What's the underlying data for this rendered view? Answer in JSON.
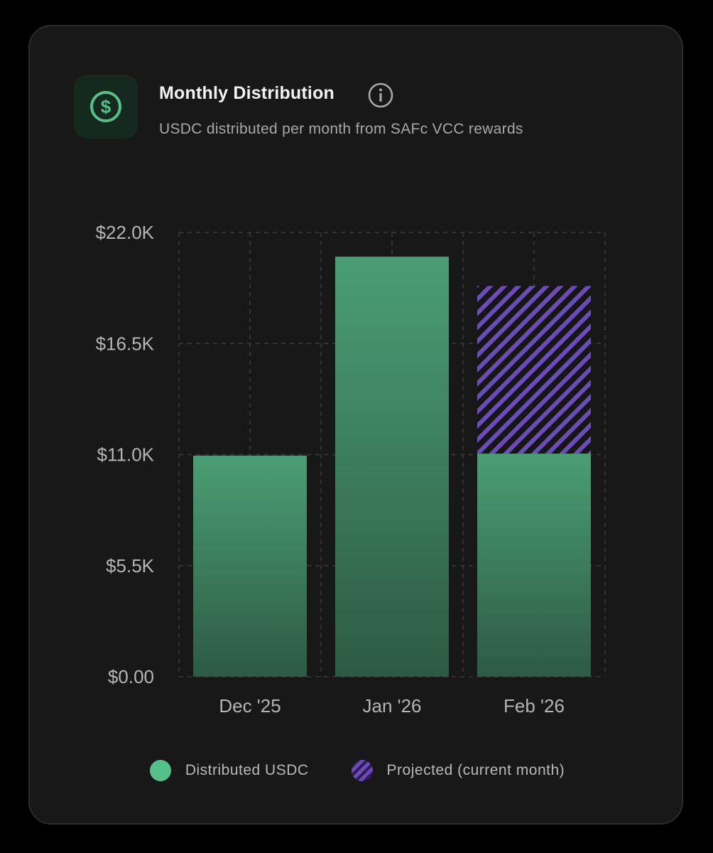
{
  "header": {
    "title": "Monthly Distribution",
    "subtitle": "USDC distributed per month from SAFc VCC rewards",
    "icon": "dollar-icon"
  },
  "colors": {
    "distributed": "#4a9b72",
    "distributed_dark": "#2e5a45",
    "projected": "#6a4bb8",
    "accent": "#55c08a"
  },
  "chart_data": {
    "type": "bar",
    "stacked": true,
    "title": "Monthly Distribution",
    "xlabel": "",
    "ylabel": "",
    "ylim": [
      0,
      22000
    ],
    "y_ticks": [
      0,
      5500,
      11000,
      16500,
      22000
    ],
    "y_tick_labels": [
      "$0.00",
      "$5.5K",
      "$11.0K",
      "$16.5K",
      "$22.0K"
    ],
    "categories": [
      "Dec '25",
      "Jan '26",
      "Feb '26"
    ],
    "series": [
      {
        "name": "Distributed USDC",
        "values": [
          10950,
          20800,
          11050
        ]
      },
      {
        "name": "Projected (current month)",
        "values": [
          0,
          0,
          8300
        ]
      }
    ],
    "grid": true,
    "legend_position": "bottom-center"
  },
  "legend": {
    "items": [
      {
        "label": "Distributed USDC"
      },
      {
        "label": "Projected (current month)"
      }
    ]
  }
}
